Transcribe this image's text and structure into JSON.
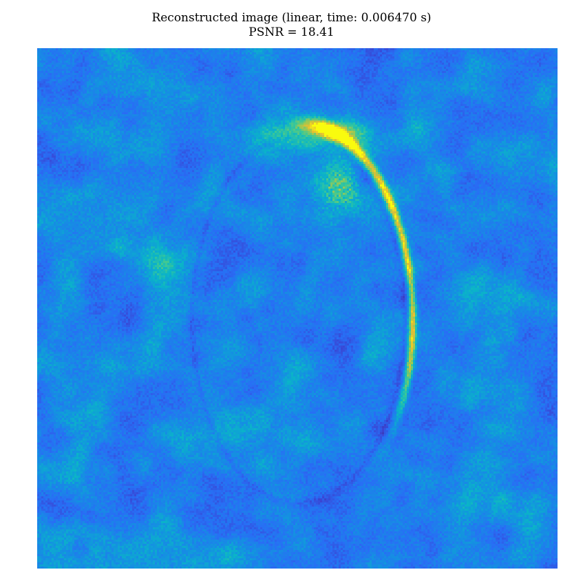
{
  "figure": {
    "title_line1": "Reconstructed image (linear, time: 0.006470 s)",
    "title_line2": "PSNR = 18.41"
  },
  "image": {
    "description_colormap": "parula",
    "colors": {
      "low": "#3e26a8",
      "mid_low": "#2f5ef6",
      "mid": "#12b1d6",
      "mid_high": "#4fcb8d",
      "high": "#f9d72c"
    }
  }
}
